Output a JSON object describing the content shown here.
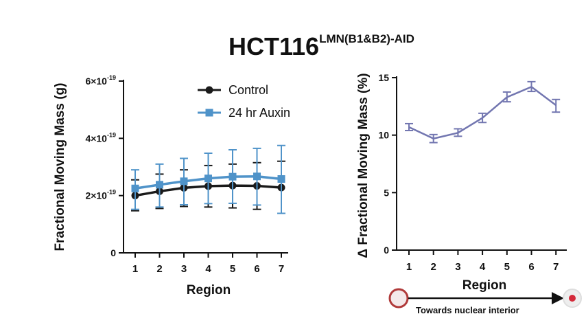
{
  "figure": {
    "title_main": "HCT116",
    "title_sup": "LMN(B1&B2)-AID",
    "arrow_label": "Towards nuclear interior"
  },
  "colors": {
    "control": "#1a1a1a",
    "auxin": "#4f93c9",
    "delta": "#7276b0",
    "circle_outer_left": "#b03a3a",
    "circle_fill_right": "#d42a3a",
    "circle_gray": "#dddddd"
  },
  "chart_data": [
    {
      "type": "line",
      "xlabel": "Region",
      "ylabel": "Fractional Moving Mass (g)",
      "categories": [
        "1",
        "2",
        "3",
        "4",
        "5",
        "6",
        "7"
      ],
      "ylim": [
        0,
        6e-19
      ],
      "yticks": [
        {
          "base": "0",
          "exp": ""
        },
        {
          "base": "2×10",
          "exp": "-19"
        },
        {
          "base": "4×10",
          "exp": "-19"
        },
        {
          "base": "6×10",
          "exp": "-19"
        }
      ],
      "ytick_values": [
        0,
        2e-19,
        4e-19,
        6e-19
      ],
      "legend_position": "top-right",
      "series": [
        {
          "name": "Control",
          "marker": "circle",
          "values": [
            2e-19,
            2.15e-19,
            2.27e-19,
            2.33e-19,
            2.35e-19,
            2.34e-19,
            2.28e-19
          ],
          "err_low": [
            1.47e-19,
            1.55e-19,
            1.62e-19,
            1.6e-19,
            1.57e-19,
            1.52e-19,
            1.38e-19
          ],
          "err_high": [
            2.55e-19,
            2.75e-19,
            2.9e-19,
            3.05e-19,
            3.1e-19,
            3.15e-19,
            3.2e-19
          ]
        },
        {
          "name": "24 hr Auxin",
          "marker": "square",
          "values": [
            2.25e-19,
            2.38e-19,
            2.5e-19,
            2.6e-19,
            2.66e-19,
            2.67e-19,
            2.58e-19
          ],
          "err_low": [
            1.52e-19,
            1.6e-19,
            1.68e-19,
            1.72e-19,
            1.73e-19,
            1.67e-19,
            1.38e-19
          ],
          "err_high": [
            2.9e-19,
            3.1e-19,
            3.3e-19,
            3.48e-19,
            3.6e-19,
            3.65e-19,
            3.75e-19
          ]
        }
      ]
    },
    {
      "type": "line",
      "xlabel": "Region",
      "ylabel": "Δ Fractional Moving Mass (%)",
      "categories": [
        "1",
        "2",
        "3",
        "4",
        "5",
        "6",
        "7"
      ],
      "ylim": [
        0,
        15
      ],
      "yticks": [
        {
          "base": "0",
          "exp": ""
        },
        {
          "base": "5",
          "exp": ""
        },
        {
          "base": "10",
          "exp": ""
        },
        {
          "base": "15",
          "exp": ""
        }
      ],
      "ytick_values": [
        0,
        5,
        10,
        15
      ],
      "series": [
        {
          "values": [
            10.7,
            9.7,
            10.2,
            11.5,
            13.3,
            14.2,
            12.6
          ],
          "err_low": [
            10.4,
            9.35,
            9.9,
            11.1,
            12.9,
            13.8,
            12.0
          ],
          "err_high": [
            11.0,
            10.05,
            10.55,
            11.9,
            13.75,
            14.65,
            13.1
          ]
        }
      ]
    }
  ]
}
